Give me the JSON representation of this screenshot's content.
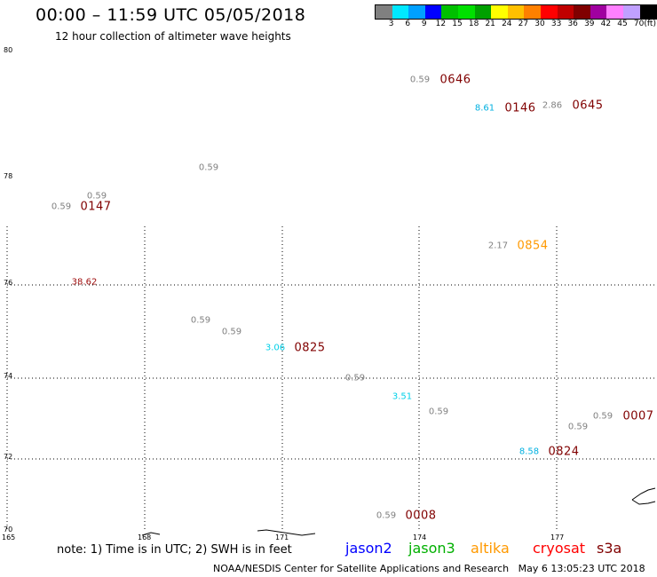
{
  "header": {
    "title": "00:00 – 11:59 UTC 05/05/2018",
    "subtitle": "12 hour collection of altimeter wave heights"
  },
  "colorbar": {
    "colors": [
      "#808080",
      "#00e8ff",
      "#00a0ff",
      "#0000ff",
      "#00c000",
      "#00e000",
      "#00a000",
      "#ffff00",
      "#ffc000",
      "#ff8000",
      "#ff0000",
      "#c00000",
      "#800000",
      "#a000a0",
      "#ff80ff",
      "#c0a0ff",
      "#000000"
    ],
    "labels": [
      "3",
      "6",
      "9",
      "12",
      "15",
      "18",
      "21",
      "24",
      "27",
      "30",
      "33",
      "36",
      "39",
      "42",
      "45",
      "70",
      "(ft)"
    ]
  },
  "axes": {
    "lat_labels": [
      "80",
      "78",
      "76",
      "74",
      "72",
      "70"
    ],
    "lon_labels": [
      "165",
      "168",
      "171",
      "174",
      "177"
    ]
  },
  "measurements": [
    {
      "value": "0.59",
      "color": "#808080"
    },
    {
      "value": "8.61",
      "color": "#00b0e0"
    },
    {
      "value": "2.86",
      "color": "#808080"
    },
    {
      "value": "0.59",
      "color": "#808080"
    },
    {
      "value": "0.59",
      "color": "#808080"
    },
    {
      "value": "0.59",
      "color": "#808080"
    },
    {
      "value": "2.17",
      "color": "#808080"
    },
    {
      "value": "38.62",
      "color": "#a01010"
    },
    {
      "value": "0.59",
      "color": "#808080"
    },
    {
      "value": "0.59",
      "color": "#808080"
    },
    {
      "value": "3.06",
      "color": "#00d0e8"
    },
    {
      "value": "0.59",
      "color": "#808080"
    },
    {
      "value": "3.51",
      "color": "#00d0e8"
    },
    {
      "value": "0.59",
      "color": "#808080"
    },
    {
      "value": "0.59",
      "color": "#808080"
    },
    {
      "value": "0.59",
      "color": "#808080"
    },
    {
      "value": "8.58",
      "color": "#00b0e0"
    },
    {
      "value": "0.59",
      "color": "#808080"
    }
  ],
  "times": [
    {
      "value": "0646",
      "color": "#800000"
    },
    {
      "value": "0146",
      "color": "#800000"
    },
    {
      "value": "0645",
      "color": "#800000"
    },
    {
      "value": "0147",
      "color": "#800000"
    },
    {
      "value": "0854",
      "color": "#ff9900"
    },
    {
      "value": "0825",
      "color": "#800000"
    },
    {
      "value": "0007",
      "color": "#800000"
    },
    {
      "value": "0824",
      "color": "#800000"
    },
    {
      "value": "0008",
      "color": "#800000"
    }
  ],
  "footer": {
    "note": "note: 1) Time is in UTC; 2) SWH is in feet",
    "satellites": [
      {
        "name": "jason2",
        "color": "#0000ff"
      },
      {
        "name": "jason3",
        "color": "#00b000"
      },
      {
        "name": "altika",
        "color": "#ff9900"
      },
      {
        "name": "cryosat",
        "color": "#ff0000"
      },
      {
        "name": "s3a",
        "color": "#800000"
      }
    ],
    "credit": "NOAA/NESDIS Center for Satellite Applications and Research",
    "timestamp": "May  6 13:05:23 UTC 2018"
  }
}
